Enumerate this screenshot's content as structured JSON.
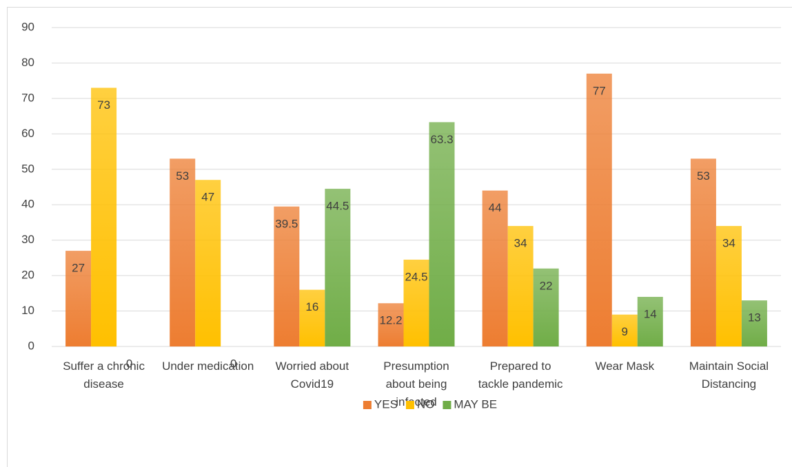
{
  "chart_data": {
    "type": "bar",
    "categories": [
      "Suffer a chronic disease",
      "Under medication",
      "Worried about Covid19",
      "Presumption about being infected",
      "Prepared to tackle pandemic",
      "Wear Mask",
      "Maintain Social Distancing"
    ],
    "series": [
      {
        "name": "YES",
        "color": "#ed7d31",
        "values": [
          27,
          53,
          39.5,
          12.2,
          44,
          77,
          53
        ]
      },
      {
        "name": "NO",
        "color": "#ffc000",
        "values": [
          73,
          47,
          16,
          24.5,
          34,
          9,
          34
        ]
      },
      {
        "name": "MAY BE",
        "color": "#70ad47",
        "values": [
          0,
          0,
          44.5,
          63.3,
          22,
          14,
          13
        ]
      }
    ],
    "ylim": [
      0,
      90
    ],
    "yticks": [
      0,
      10,
      20,
      30,
      40,
      50,
      60,
      70,
      80,
      90
    ],
    "grid": true,
    "legend": "bottom",
    "data_labels": true
  }
}
